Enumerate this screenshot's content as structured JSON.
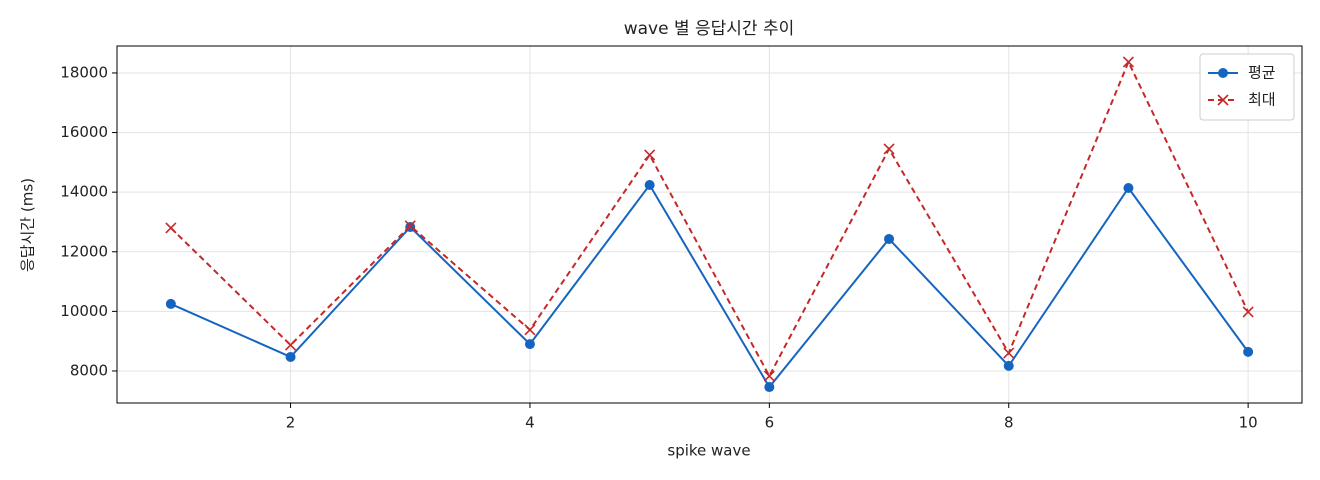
{
  "chart_data": {
    "type": "line",
    "title": "wave 별 응답시간 추이",
    "x_label": "spike wave",
    "y_label": "응답시간 (ms)",
    "x": [
      1,
      2,
      3,
      4,
      5,
      6,
      7,
      8,
      9,
      10
    ],
    "series": [
      {
        "name": "평균",
        "color": "#1565c0",
        "dashed": false,
        "marker": "circle",
        "values": [
          10250,
          8470,
          12830,
          8900,
          14240,
          7460,
          12430,
          8170,
          14140,
          8640
        ]
      },
      {
        "name": "최대",
        "color": "#c62828",
        "dashed": true,
        "marker": "x",
        "values": [
          12800,
          8870,
          12870,
          9380,
          15250,
          7830,
          15450,
          8600,
          18370,
          9980
        ]
      }
    ],
    "xlim": [
      0.55,
      10.45
    ],
    "xticks": [
      2,
      4,
      6,
      8,
      10
    ],
    "ylim": [
      6925,
      18905
    ],
    "yticks": [
      8000,
      10000,
      12000,
      14000,
      16000,
      18000
    ],
    "grid": true,
    "legend": "upper right"
  }
}
